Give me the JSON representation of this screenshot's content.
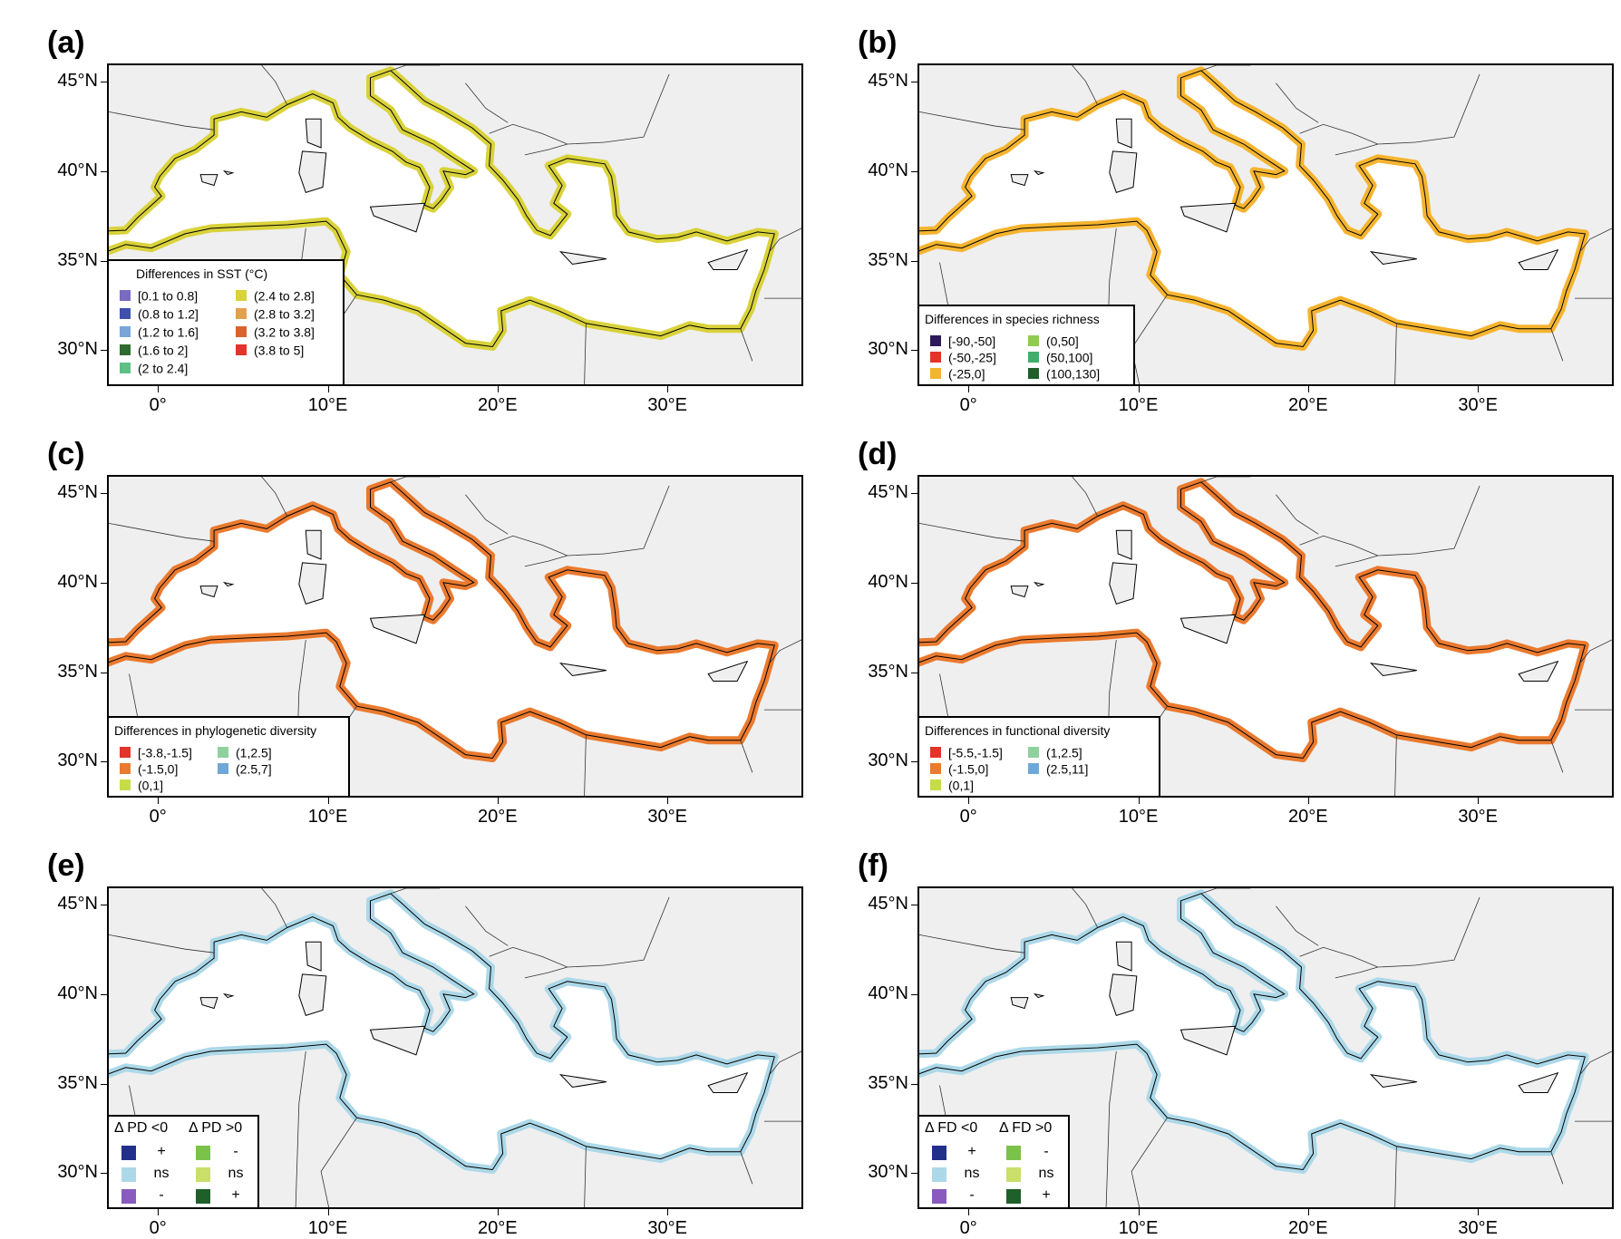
{
  "axes": {
    "lat_labels": [
      "45°N",
      "40°N",
      "35°N",
      "30°N"
    ],
    "lon_labels": [
      "0°",
      "10°E",
      "20°E",
      "30°E"
    ],
    "lat_values": [
      45,
      40,
      35,
      30
    ],
    "lon_values": [
      0,
      10,
      20,
      30
    ],
    "lon_range": [
      -3,
      38
    ],
    "lat_range": [
      28,
      46
    ]
  },
  "colors": {
    "land": "#efefef",
    "sea": "#ffffff",
    "border": "#000000"
  },
  "panels": [
    {
      "id": "a",
      "letter": "(a)",
      "legend_title": "Differences in SST (°C)",
      "legend_items": [
        {
          "label": "[0.1 to 0.8]",
          "color": "#7b6bbf"
        },
        {
          "label": "(0.8 to 1.2]",
          "color": "#3f4fae"
        },
        {
          "label": "(1.2 to 1.6]",
          "color": "#7aa6d6"
        },
        {
          "label": "(1.6 to 2]",
          "color": "#2e6b2f"
        },
        {
          "label": "(2 to 2.4]",
          "color": "#5fbf85"
        },
        {
          "label": "(2.4 to 2.8]",
          "color": "#d9d23a"
        },
        {
          "label": "(2.8 to 3.2]",
          "color": "#e3a04f"
        },
        {
          "label": "(3.2 to 3.8]",
          "color": "#d9632f"
        },
        {
          "label": "(3.8 to 5]",
          "color": "#e4332a"
        }
      ],
      "coast_color": "#d9d23a"
    },
    {
      "id": "b",
      "letter": "(b)",
      "legend_title": "Differences in species richness",
      "legend_items": [
        {
          "label": "[-90,-50]",
          "color": "#2b1a5a"
        },
        {
          "label": "(-50,-25]",
          "color": "#e4332a"
        },
        {
          "label": "(-25,0]",
          "color": "#f5b42f"
        },
        {
          "label": "(0,50]",
          "color": "#8fcc4d"
        },
        {
          "label": "(50,100]",
          "color": "#3fae6a"
        },
        {
          "label": "(100,130]",
          "color": "#1f5f2a"
        }
      ],
      "coast_color": "#f5b42f"
    },
    {
      "id": "c",
      "letter": "(c)",
      "legend_title": "Differences in phylogenetic diversity",
      "legend_items": [
        {
          "label": "[-3.8,-1.5]",
          "color": "#e4332a"
        },
        {
          "label": "(-1.5,0]",
          "color": "#ea7a2f"
        },
        {
          "label": "(0,1]",
          "color": "#c7dd45"
        },
        {
          "label": "(1,2.5]",
          "color": "#8fd19e"
        },
        {
          "label": "(2.5,7]",
          "color": "#6ea8d8"
        }
      ],
      "coast_color": "#ea7a2f"
    },
    {
      "id": "d",
      "letter": "(d)",
      "legend_title": "Differences in functional diversity",
      "legend_items": [
        {
          "label": "[-5.5,-1.5]",
          "color": "#e4332a"
        },
        {
          "label": "(-1.5,0]",
          "color": "#ea7a2f"
        },
        {
          "label": "(0,1]",
          "color": "#c7dd45"
        },
        {
          "label": "(1,2.5]",
          "color": "#8fd19e"
        },
        {
          "label": "(2.5,11]",
          "color": "#6ea8d8"
        }
      ],
      "coast_color": "#ea7a2f"
    },
    {
      "id": "e",
      "letter": "(e)",
      "sig_left_head": "Δ PD <0",
      "sig_right_head": "Δ PD >0",
      "sig_rows": [
        {
          "left_color": "#22308c",
          "left_label": "+",
          "right_color": "#7bc24a",
          "right_label": "-"
        },
        {
          "left_color": "#acd8e8",
          "left_label": "ns",
          "right_color": "#c9df6a",
          "right_label": "ns"
        },
        {
          "left_color": "#8a5bbf",
          "left_label": "-",
          "right_color": "#1f5f2a",
          "right_label": "+"
        }
      ],
      "coast_color": "#acd8e8"
    },
    {
      "id": "f",
      "letter": "(f)",
      "sig_left_head": "Δ FD <0",
      "sig_right_head": "Δ FD >0",
      "sig_rows": [
        {
          "left_color": "#22308c",
          "left_label": "+",
          "right_color": "#7bc24a",
          "right_label": "-"
        },
        {
          "left_color": "#acd8e8",
          "left_label": "ns",
          "right_color": "#c9df6a",
          "right_label": "ns"
        },
        {
          "left_color": "#8a5bbf",
          "left_label": "-",
          "right_color": "#1f5f2a",
          "right_label": "+"
        }
      ],
      "coast_color": "#acd8e8"
    }
  ]
}
